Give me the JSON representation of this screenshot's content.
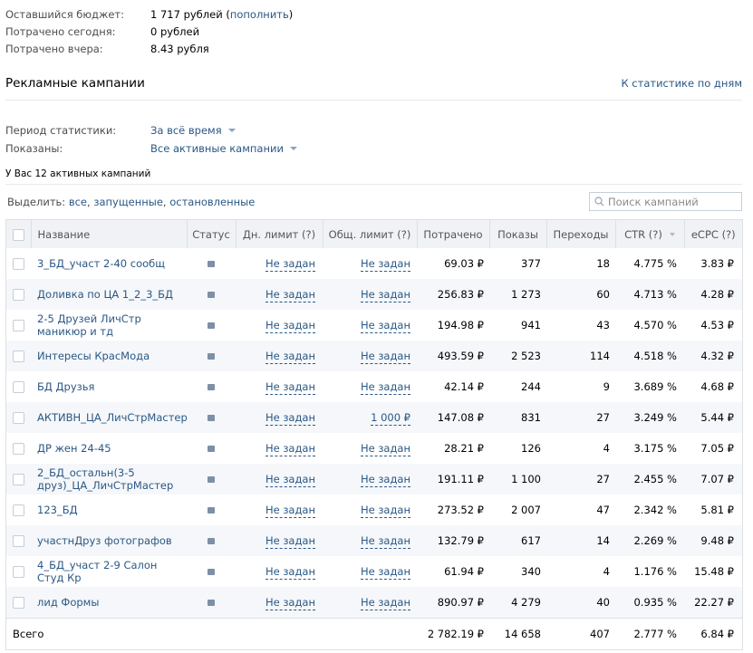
{
  "budget": {
    "rows": [
      {
        "label": "Оставшийся бюджет:",
        "value": "1 717 рублей",
        "link": "пополнить"
      },
      {
        "label": "Потрачено сегодня:",
        "value": "0 рублей"
      },
      {
        "label": "Потрачено вчера:",
        "value": "8.43 рубля"
      }
    ]
  },
  "section": {
    "title": "Рекламные кампании",
    "stats_link": "К статистике по дням"
  },
  "filters": {
    "period_label": "Период статистики:",
    "period_value": "За всё время",
    "shown_label": "Показаны:",
    "shown_value": "Все активные кампании"
  },
  "active_count": "У Вас 12 активных кампаний",
  "select": {
    "prefix": "Выделить:",
    "all": "все",
    "running": "запущенные",
    "stopped": "остановленные"
  },
  "search": {
    "placeholder": "Поиск кампаний"
  },
  "table": {
    "headers": {
      "name": "Название",
      "status": "Статус",
      "day_limit": "Дн. лимит (?)",
      "total_limit": "Общ. лимит (?)",
      "spent": "Потрачено",
      "views": "Показы",
      "clicks": "Переходы",
      "ctr": "CTR (?)",
      "ecpc": "eCPC (?)"
    },
    "rows": [
      {
        "name": "3_БД_участ 2-40 сообщ",
        "day_limit": "Не задан",
        "total_limit": "Не задан",
        "spent": "69.03 ₽",
        "views": "377",
        "clicks": "18",
        "ctr": "4.775 %",
        "ecpc": "3.83 ₽"
      },
      {
        "name": "Доливка по ЦА 1_2_3_БД",
        "day_limit": "Не задан",
        "total_limit": "Не задан",
        "spent": "256.83 ₽",
        "views": "1 273",
        "clicks": "60",
        "ctr": "4.713 %",
        "ecpc": "4.28 ₽"
      },
      {
        "name": "2-5 Друзей ЛичСтр маникюр и тд",
        "day_limit": "Не задан",
        "total_limit": "Не задан",
        "spent": "194.98 ₽",
        "views": "941",
        "clicks": "43",
        "ctr": "4.570 %",
        "ecpc": "4.53 ₽"
      },
      {
        "name": "Интересы КрасМода",
        "day_limit": "Не задан",
        "total_limit": "Не задан",
        "spent": "493.59 ₽",
        "views": "2 523",
        "clicks": "114",
        "ctr": "4.518 %",
        "ecpc": "4.32 ₽"
      },
      {
        "name": "БД Друзья",
        "day_limit": "Не задан",
        "total_limit": "Не задан",
        "spent": "42.14 ₽",
        "views": "244",
        "clicks": "9",
        "ctr": "3.689 %",
        "ecpc": "4.68 ₽"
      },
      {
        "name": "АКТИВН_ЦА_ЛичСтрМастера",
        "day_limit": "Не задан",
        "total_limit": "1 000 ₽",
        "spent": "147.08 ₽",
        "views": "831",
        "clicks": "27",
        "ctr": "3.249 %",
        "ecpc": "5.44 ₽"
      },
      {
        "name": "ДР жен 24-45",
        "day_limit": "Не задан",
        "total_limit": "Не задан",
        "spent": "28.21 ₽",
        "views": "126",
        "clicks": "4",
        "ctr": "3.175 %",
        "ecpc": "7.05 ₽"
      },
      {
        "name": "2_БД_остальн(3-5 друз)_ЦА_ЛичСтрМастер",
        "day_limit": "Не задан",
        "total_limit": "Не задан",
        "spent": "191.11 ₽",
        "views": "1 100",
        "clicks": "27",
        "ctr": "2.455 %",
        "ecpc": "7.07 ₽"
      },
      {
        "name": "123_БД",
        "day_limit": "Не задан",
        "total_limit": "Не задан",
        "spent": "273.52 ₽",
        "views": "2 007",
        "clicks": "47",
        "ctr": "2.342 %",
        "ecpc": "5.81 ₽"
      },
      {
        "name": "участнДруз фотографов",
        "day_limit": "Не задан",
        "total_limit": "Не задан",
        "spent": "132.79 ₽",
        "views": "617",
        "clicks": "14",
        "ctr": "2.269 %",
        "ecpc": "9.48 ₽"
      },
      {
        "name": "4_БД_участ 2-9 Салон Студ Кр",
        "day_limit": "Не задан",
        "total_limit": "Не задан",
        "spent": "61.94 ₽",
        "views": "340",
        "clicks": "4",
        "ctr": "1.176 %",
        "ecpc": "15.48 ₽"
      },
      {
        "name": "лид Формы",
        "day_limit": "Не задан",
        "total_limit": "Не задан",
        "spent": "890.97 ₽",
        "views": "4 279",
        "clicks": "40",
        "ctr": "0.935 %",
        "ecpc": "22.27 ₽"
      }
    ],
    "total": {
      "label": "Всего",
      "spent": "2 782.19 ₽",
      "views": "14 658",
      "clicks": "407",
      "ctr": "2.777 %",
      "ecpc": "6.84 ₽"
    }
  },
  "colors": {
    "link": "#2a5885",
    "header_bg": "#f0f2f5",
    "stripe": "#f5f7fa",
    "border": "#dce1e6"
  }
}
